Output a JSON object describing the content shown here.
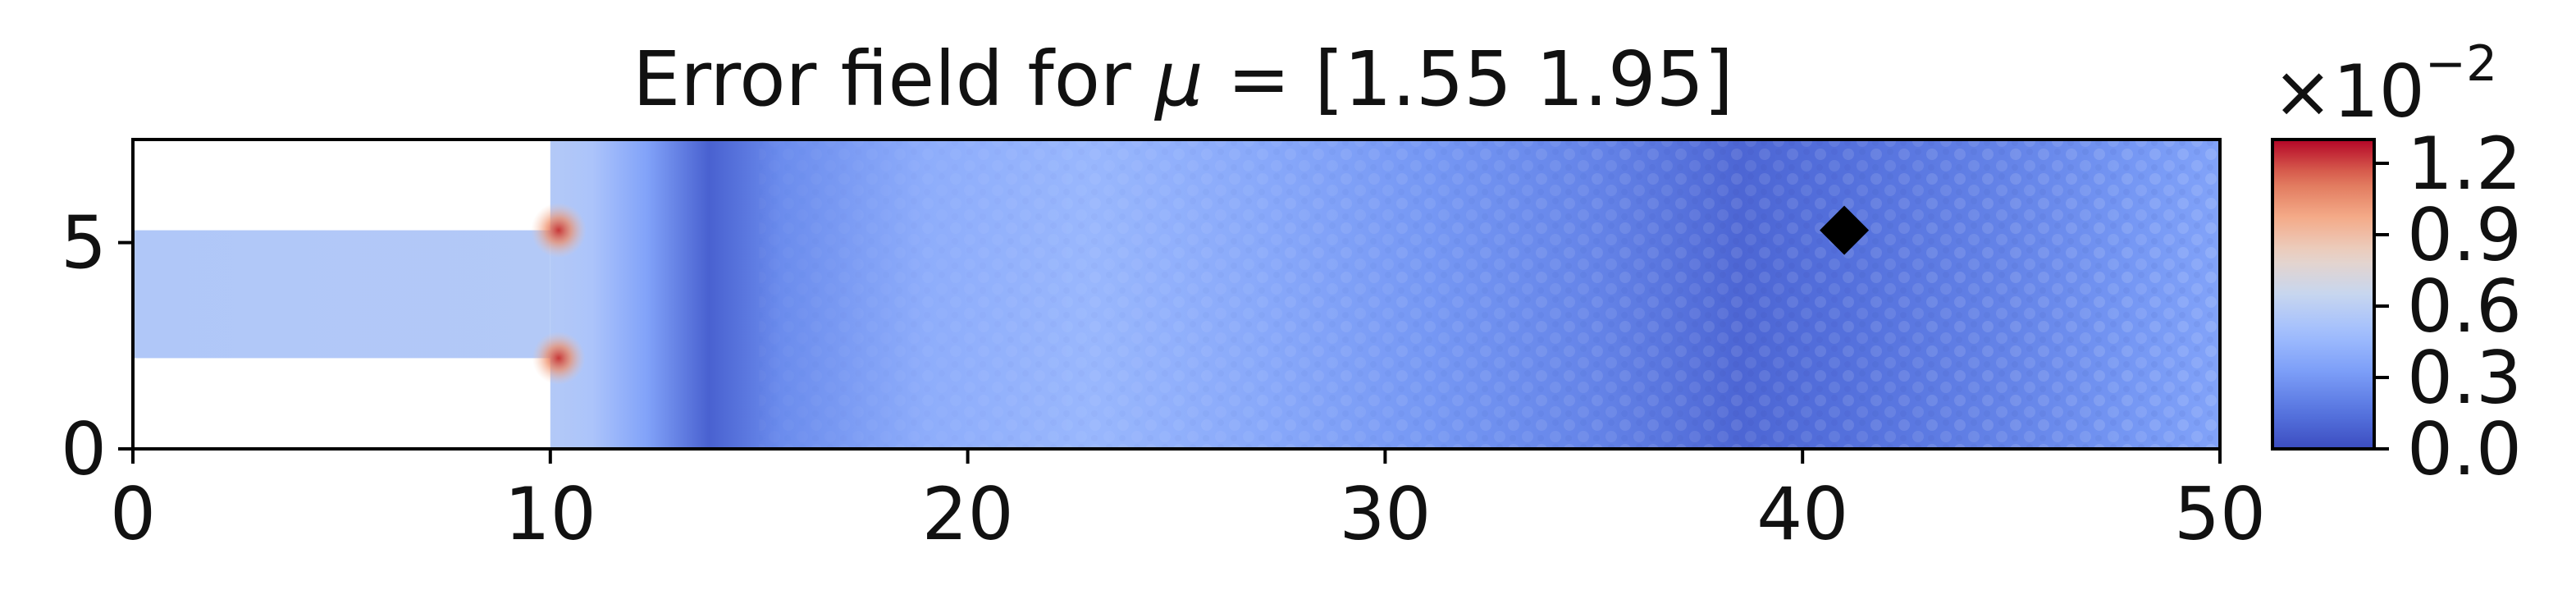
{
  "chart_data": {
    "type": "heatmap",
    "title": {
      "prefix": "Error field for ",
      "symbol": "μ",
      "suffix": " = [1.55 1.95]"
    },
    "xlabel": "",
    "ylabel": "",
    "xlim": [
      0,
      50
    ],
    "ylim": [
      0,
      7.5
    ],
    "x_ticks": [
      0,
      10,
      20,
      30,
      40,
      50
    ],
    "y_ticks": [
      0,
      5
    ],
    "domain": {
      "inlet_channel": {
        "x": [
          0,
          10
        ],
        "y": [
          2.2,
          5.3
        ]
      },
      "main_channel": {
        "x": [
          10,
          50
        ],
        "y": [
          0,
          7.5
        ]
      }
    },
    "marker": {
      "shape": "diamond",
      "x": 41,
      "y": 5.3,
      "color": "#000000"
    },
    "colorbar": {
      "colormap": "coolwarm",
      "range": [
        0.0,
        1.3
      ],
      "multiplier_base": "×10",
      "multiplier_exp": "−2",
      "ticks": [
        0.0,
        0.3,
        0.6,
        0.9,
        1.2
      ],
      "tick_labels": [
        "0.0",
        "0.3",
        "0.6",
        "0.9",
        "1.2"
      ]
    },
    "field_profile": [
      {
        "x": 0,
        "value": 0.55
      },
      {
        "x": 10,
        "value": 0.56
      },
      {
        "x": 11,
        "value": 0.53
      },
      {
        "x": 12.3,
        "value": 0.35
      },
      {
        "x": 13.8,
        "value": 0.08
      },
      {
        "x": 15.5,
        "value": 0.25
      },
      {
        "x": 19,
        "value": 0.4
      },
      {
        "x": 23,
        "value": 0.45
      },
      {
        "x": 27,
        "value": 0.38
      },
      {
        "x": 31,
        "value": 0.3
      },
      {
        "x": 35,
        "value": 0.22
      },
      {
        "x": 38.5,
        "value": 0.1
      },
      {
        "x": 41,
        "value": 0.14
      },
      {
        "x": 45,
        "value": 0.22
      },
      {
        "x": 48,
        "value": 0.3
      },
      {
        "x": 50,
        "value": 0.35
      }
    ],
    "hotspots": [
      {
        "x": 10.2,
        "y": 5.3,
        "value": 1.25
      },
      {
        "x": 10.2,
        "y": 2.2,
        "value": 1.05
      }
    ]
  }
}
